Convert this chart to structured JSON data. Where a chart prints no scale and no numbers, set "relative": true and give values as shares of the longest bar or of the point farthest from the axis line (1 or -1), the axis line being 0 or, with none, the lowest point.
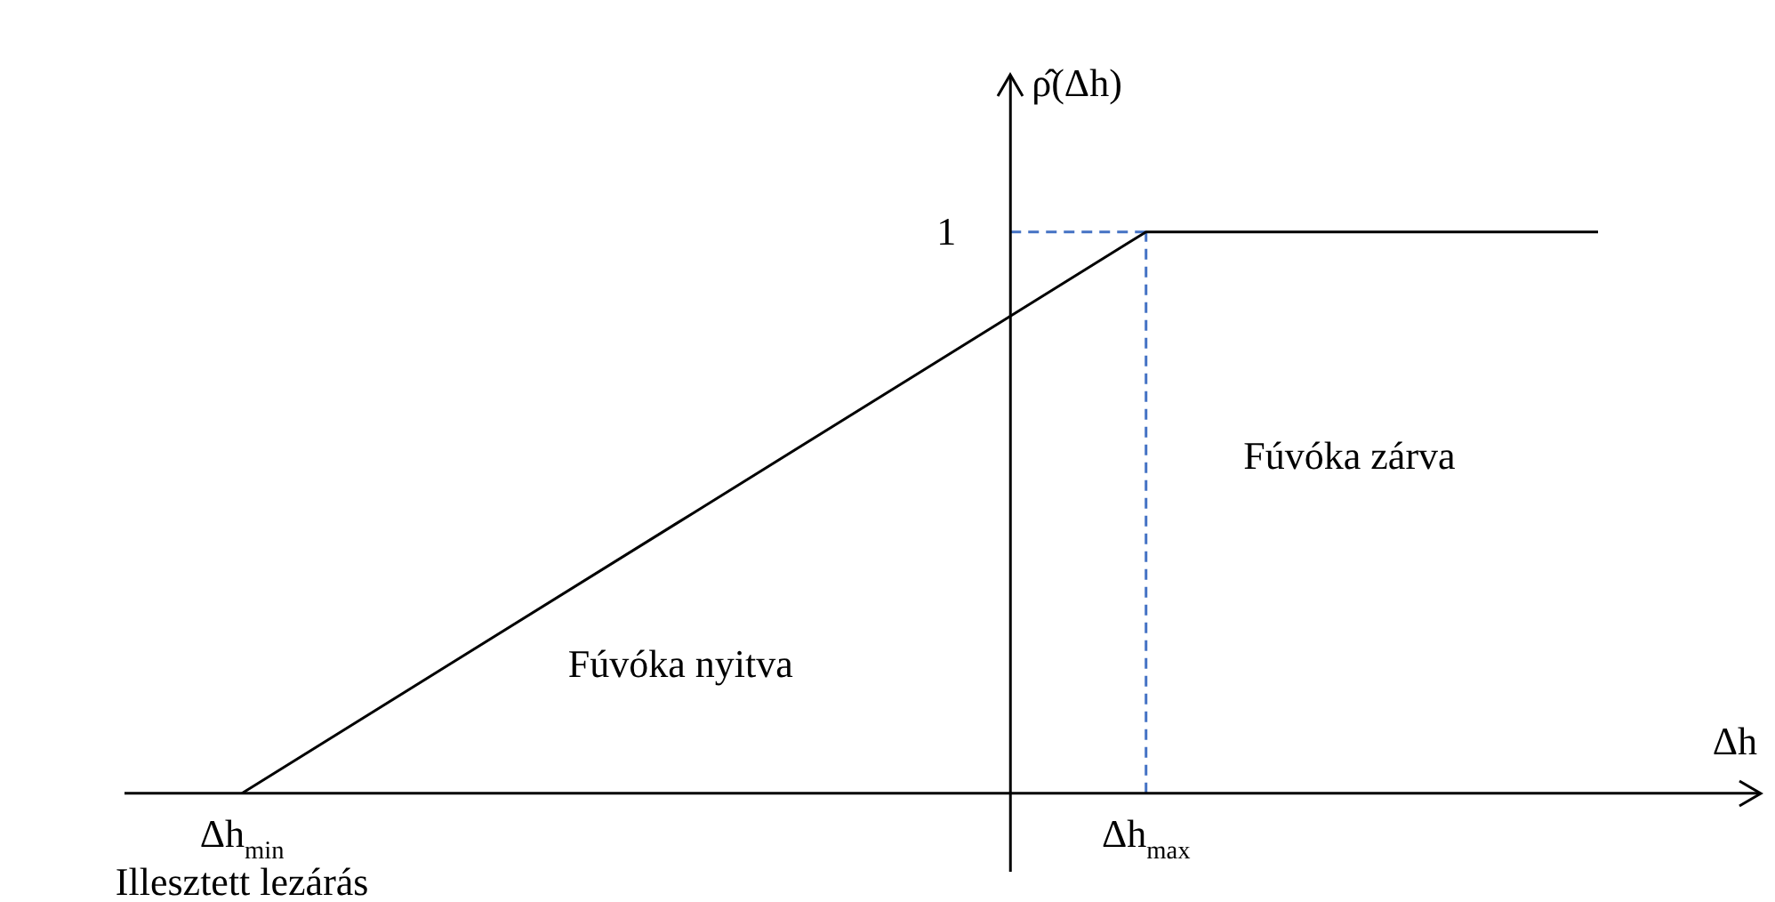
{
  "chart_data": {
    "type": "line",
    "relative": true,
    "xlabel": "Δh",
    "ylabel": "ρ̂(Δh)",
    "categories": [
      "Δh$_{min}$",
      null,
      "Δh$_{max}$",
      null
    ],
    "series": [
      {
        "color": "#000000",
        "values": [
          0,
          0.5,
          1,
          1
        ]
      }
    ],
    "ref_lines": [
      {
        "axis": "y",
        "value": 1,
        "color": "#4472c4",
        "line_style": "dashed"
      },
      {
        "axis": "x",
        "value": "Δh$_{max}$",
        "color": "#4472c4",
        "line_style": "dashed"
      }
    ],
    "annotations": [
      "1",
      "Fúvóka nyitva",
      "Fúvóka zárva",
      "Illesztett lezárás"
    ],
    "marker": "none",
    "line_style": "solid"
  }
}
